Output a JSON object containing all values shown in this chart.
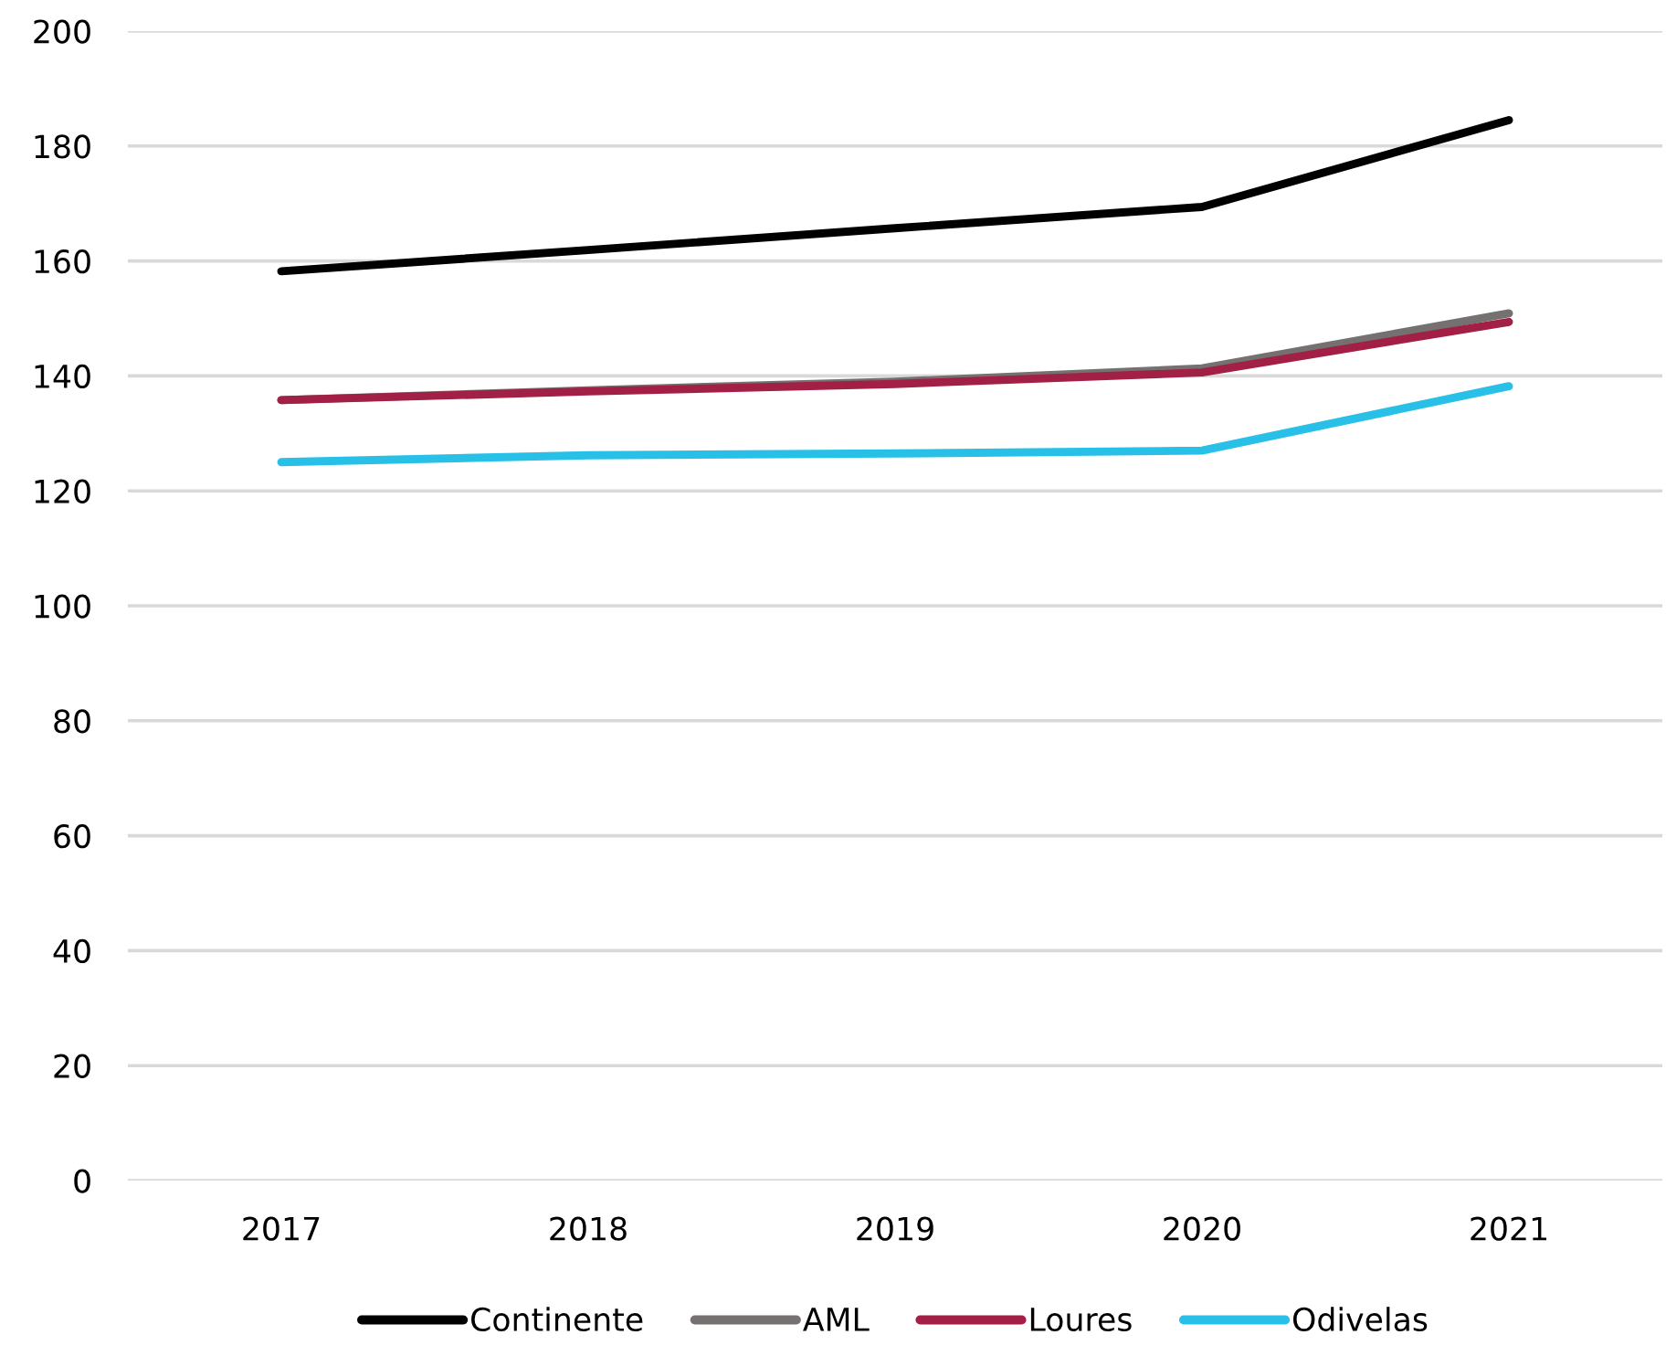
{
  "chart_data": {
    "type": "line",
    "categories": [
      "2017",
      "2018",
      "2019",
      "2020",
      "2021"
    ],
    "series": [
      {
        "name": "Continente",
        "color": "#000000",
        "values": [
          158.2,
          161.9,
          165.7,
          169.4,
          184.5
        ]
      },
      {
        "name": "AML",
        "color": "#767171",
        "values": [
          135.8,
          137.5,
          139.0,
          141.3,
          150.9
        ]
      },
      {
        "name": "Loures",
        "color": "#a21f45",
        "values": [
          135.8,
          137.3,
          138.6,
          140.6,
          149.4
        ]
      },
      {
        "name": "Odivelas",
        "color": "#29c0e8",
        "values": [
          125.0,
          126.2,
          126.5,
          127.0,
          138.2
        ]
      }
    ],
    "ylim": [
      0,
      200
    ],
    "yticks": [
      0,
      20,
      40,
      60,
      80,
      100,
      120,
      140,
      160,
      180,
      200
    ],
    "grid": "y",
    "legend": "bottom",
    "marker": "none",
    "line_style": "solid"
  }
}
